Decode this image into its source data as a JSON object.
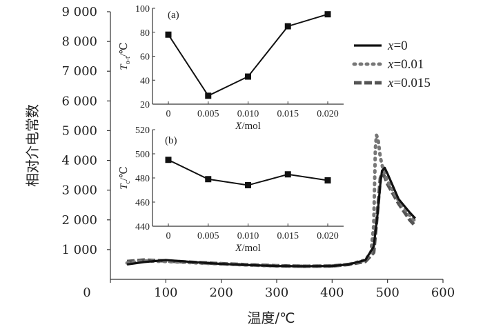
{
  "chart_data": [
    {
      "type": "line",
      "xlabel": "温度/℃",
      "ylabel": "相对介电常数",
      "xlim": [
        0,
        600
      ],
      "ylim": [
        0,
        9000
      ],
      "x_ticks": [
        "0",
        "100",
        "200",
        "300",
        "400",
        "500",
        "600"
      ],
      "y_ticks": [
        "1 000",
        "2 000",
        "3 000",
        "4 000",
        "5 000",
        "6 000",
        "7 000",
        "8 000",
        "9 000"
      ],
      "legend_position": "right",
      "series": [
        {
          "name": "x=0",
          "label_prefix": "x",
          "label_suffix": "=0",
          "color": "#111111",
          "style": "solid",
          "x": [
            30,
            60,
            100,
            150,
            200,
            250,
            300,
            350,
            400,
            430,
            460,
            475,
            482,
            487,
            490,
            495,
            500,
            520,
            540,
            550
          ],
          "y": [
            500,
            580,
            650,
            580,
            520,
            480,
            450,
            440,
            450,
            500,
            650,
            1100,
            2200,
            3200,
            3650,
            3750,
            3550,
            2700,
            2250,
            2050
          ]
        },
        {
          "name": "x=0.01",
          "label_prefix": "x",
          "label_suffix": "=0.01",
          "color": "#777777",
          "style": "dotted",
          "x": [
            30,
            60,
            100,
            150,
            200,
            250,
            300,
            350,
            400,
            430,
            460,
            470,
            475,
            478,
            480,
            483,
            487,
            492,
            500,
            520,
            540,
            550
          ],
          "y": [
            550,
            620,
            600,
            560,
            520,
            480,
            450,
            440,
            450,
            500,
            650,
            900,
            1800,
            4400,
            4850,
            4700,
            4100,
            3700,
            3300,
            2650,
            2150,
            1950
          ]
        },
        {
          "name": "x=0.015",
          "label_prefix": "x",
          "label_suffix": "=0.015",
          "color": "#555555",
          "style": "dashed",
          "x": [
            30,
            60,
            100,
            150,
            200,
            250,
            300,
            350,
            400,
            430,
            460,
            475,
            482,
            487,
            490,
            495,
            500,
            520,
            540,
            550
          ],
          "y": [
            600,
            650,
            620,
            570,
            530,
            490,
            460,
            440,
            450,
            500,
            600,
            900,
            2300,
            3400,
            3550,
            3450,
            3200,
            2550,
            2000,
            1800
          ]
        }
      ]
    },
    {
      "type": "line",
      "panel_label": "(a)",
      "xlabel_var": "X",
      "xlabel_unit": "/mol",
      "ylabel_sym": "T",
      "ylabel_sub": "o-t",
      "ylabel_unit": "/℃",
      "categories": [
        "0",
        "0.005",
        "0.010",
        "0.015",
        "0.020"
      ],
      "values": [
        78,
        27,
        43,
        85,
        95
      ],
      "ylim": [
        20,
        100
      ],
      "y_ticks": [
        "20",
        "40",
        "60",
        "80",
        "100"
      ]
    },
    {
      "type": "line",
      "panel_label": "(b)",
      "xlabel_var": "X",
      "xlabel_unit": "/mol",
      "ylabel_sym": "T",
      "ylabel_sub": "c",
      "ylabel_unit": "/℃",
      "categories": [
        "0",
        "0.005",
        "0.010",
        "0.015",
        "0.020"
      ],
      "values": [
        495,
        479,
        474,
        483,
        478
      ],
      "ylim": [
        440,
        520
      ],
      "y_ticks": [
        "440",
        "460",
        "480",
        "500",
        "520"
      ]
    }
  ]
}
